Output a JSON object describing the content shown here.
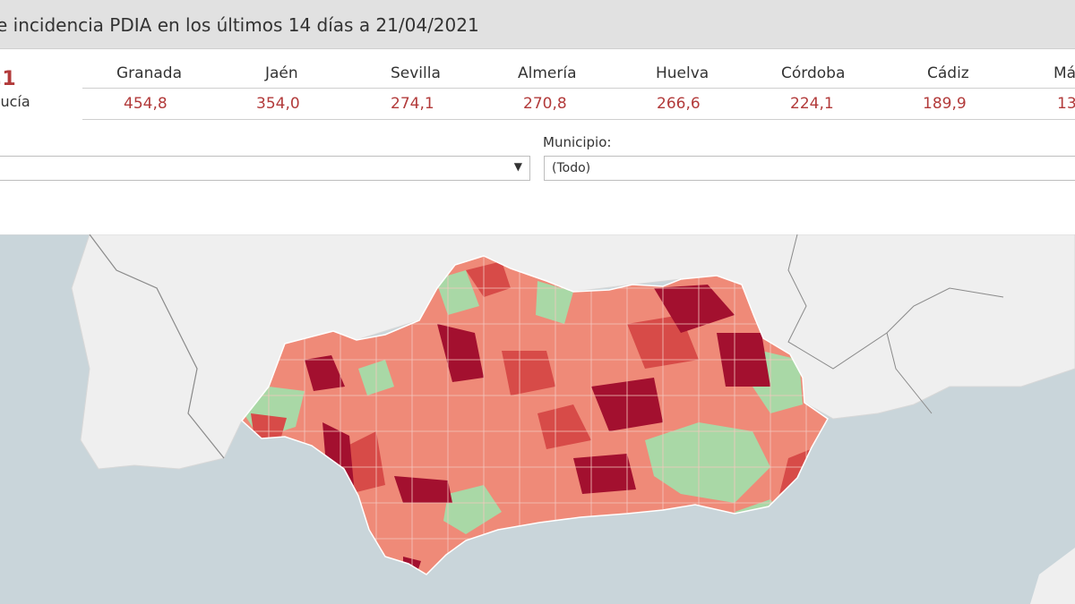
{
  "header": {
    "title": "e incidencia PDIA en los últimos 14 días a 21/04/2021"
  },
  "summary": {
    "total_value": ",1",
    "region_label": "lucía"
  },
  "provinces": [
    {
      "name": "Granada",
      "value": "454,8"
    },
    {
      "name": "Jaén",
      "value": "354,0"
    },
    {
      "name": "Sevilla",
      "value": "274,1"
    },
    {
      "name": "Almería",
      "value": "270,8"
    },
    {
      "name": "Huelva",
      "value": "266,6"
    },
    {
      "name": "Córdoba",
      "value": "224,1"
    },
    {
      "name": "Cádiz",
      "value": "189,9"
    },
    {
      "name": "Má",
      "value": "13"
    }
  ],
  "filters": {
    "municipio_label": "Municipio:",
    "municipio_value": "(Todo)"
  },
  "map": {
    "colors": {
      "sea": "#c9d5da",
      "land": "#efefef",
      "low": "#a9d8a6",
      "mid": "#ef8a78",
      "high": "#d74b48",
      "very_high": "#a3102f"
    }
  }
}
